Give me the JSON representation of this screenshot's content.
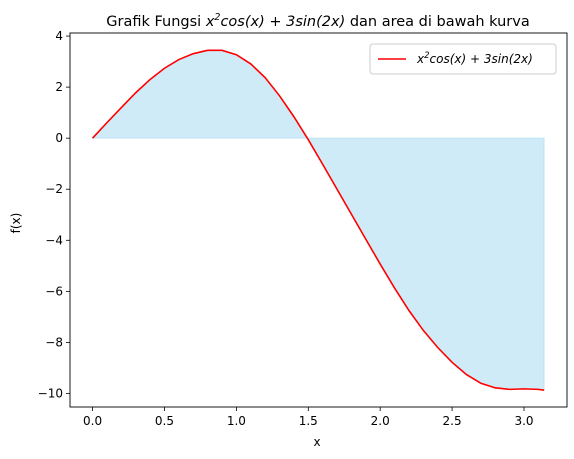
{
  "chart_data": {
    "type": "line",
    "title_prefix": "Grafik Fungsi ",
    "title_suffix": " dan area di bawah kurva",
    "formula": {
      "x_base": "x",
      "x_exp": "2",
      "rest": "cos(x) + 3sin(2x)"
    },
    "xlabel": "x",
    "ylabel": "f(x)",
    "xlim": [
      -0.157,
      3.299
    ],
    "ylim": [
      -10.53,
      4.12
    ],
    "xticks": [
      0.0,
      0.5,
      1.0,
      1.5,
      2.0,
      2.5,
      3.0
    ],
    "xtick_labels": [
      "0.0",
      "0.5",
      "1.0",
      "1.5",
      "2.0",
      "2.5",
      "3.0"
    ],
    "yticks": [
      4,
      2,
      0,
      -2,
      -4,
      -6,
      -8,
      -10
    ],
    "ytick_labels": [
      "4",
      "2",
      "0",
      "−2",
      "−4",
      "−6",
      "−8",
      "−10"
    ],
    "grid": false,
    "legend_position": "top-right",
    "series": [
      {
        "name": "x^2cos(x) + 3sin(2x)",
        "color": "#ff0000",
        "fill_color": "#87ceeb",
        "fill_alpha": 0.4,
        "x": [
          0.0,
          0.1,
          0.2,
          0.3,
          0.4,
          0.5,
          0.6,
          0.7,
          0.8,
          0.9,
          1.0,
          1.1,
          1.2,
          1.3,
          1.4,
          1.5,
          1.6,
          1.7,
          1.8,
          1.9,
          2.0,
          2.1,
          2.2,
          2.3,
          2.4,
          2.5,
          2.6,
          2.7,
          2.8,
          2.9,
          3.0,
          3.1,
          3.14
        ],
        "y": [
          0.0,
          0.61,
          1.2,
          1.78,
          2.3,
          2.74,
          3.08,
          3.31,
          3.44,
          3.44,
          3.27,
          2.91,
          2.37,
          1.66,
          0.84,
          -0.06,
          -1.02,
          -2.0,
          -2.98,
          -3.96,
          -4.93,
          -5.87,
          -6.75,
          -7.53,
          -8.2,
          -8.78,
          -9.26,
          -9.6,
          -9.78,
          -9.84,
          -9.82,
          -9.84,
          -9.87
        ]
      }
    ]
  }
}
